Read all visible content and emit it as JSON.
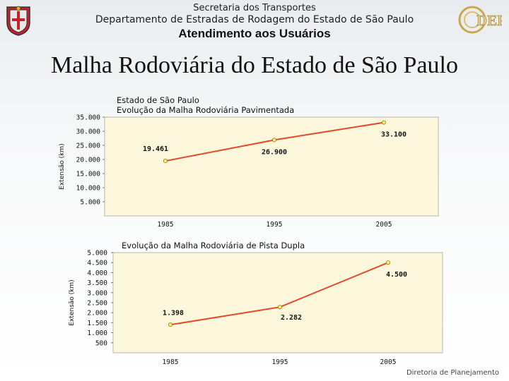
{
  "header": {
    "line1": "Secretaria dos Transportes",
    "line2": "Departamento de Estradas de Rodagem do Estado de São Paulo",
    "line3": "Atendimento aos Usuários",
    "logo_text": "DER"
  },
  "page_title": "Malha Rodoviária do Estado de São Paulo",
  "footer": "Diretoria de Planejamento",
  "colors": {
    "plot_bg": "#fdf8dc",
    "line": "#e24a2a",
    "marker": "#ffef70"
  },
  "chart_data": [
    {
      "type": "line",
      "title": "Estado de São Paulo",
      "subtitle": "Evolução da Malha Rodoviária Pavimentada",
      "ylabel": "Extensão (km)",
      "xlabel": "",
      "categories": [
        "1985",
        "1995",
        "2005"
      ],
      "series": [
        {
          "values": [
            19461,
            26900,
            33100
          ]
        }
      ],
      "data_labels": [
        "19.461",
        "26.900",
        "33.100"
      ],
      "yticks": [
        5000,
        10000,
        15000,
        20000,
        25000,
        30000,
        35000
      ],
      "ytick_labels": [
        "5.000",
        "10.000",
        "15.000",
        "20.000",
        "25.000",
        "30.000",
        "35.000"
      ],
      "ylim": [
        0,
        35000
      ],
      "grid": false,
      "legend": "none"
    },
    {
      "type": "line",
      "title": "Evolução da Malha Rodoviária de Pista Dupla",
      "subtitle": "",
      "ylabel": "Extensão (km)",
      "xlabel": "",
      "categories": [
        "1985",
        "1995",
        "2005"
      ],
      "series": [
        {
          "values": [
            1398,
            2282,
            4500
          ]
        }
      ],
      "data_labels": [
        "1.398",
        "2.282",
        "4.500"
      ],
      "yticks": [
        500,
        1000,
        1500,
        2000,
        2500,
        3000,
        3500,
        4000,
        4500,
        5000
      ],
      "ytick_labels": [
        "500",
        "1.000",
        "1.500",
        "2.000",
        "2.500",
        "3.000",
        "3.500",
        "4.000",
        "4.500",
        "5.000"
      ],
      "ylim": [
        0,
        5000
      ],
      "grid": false,
      "legend": "none"
    }
  ]
}
